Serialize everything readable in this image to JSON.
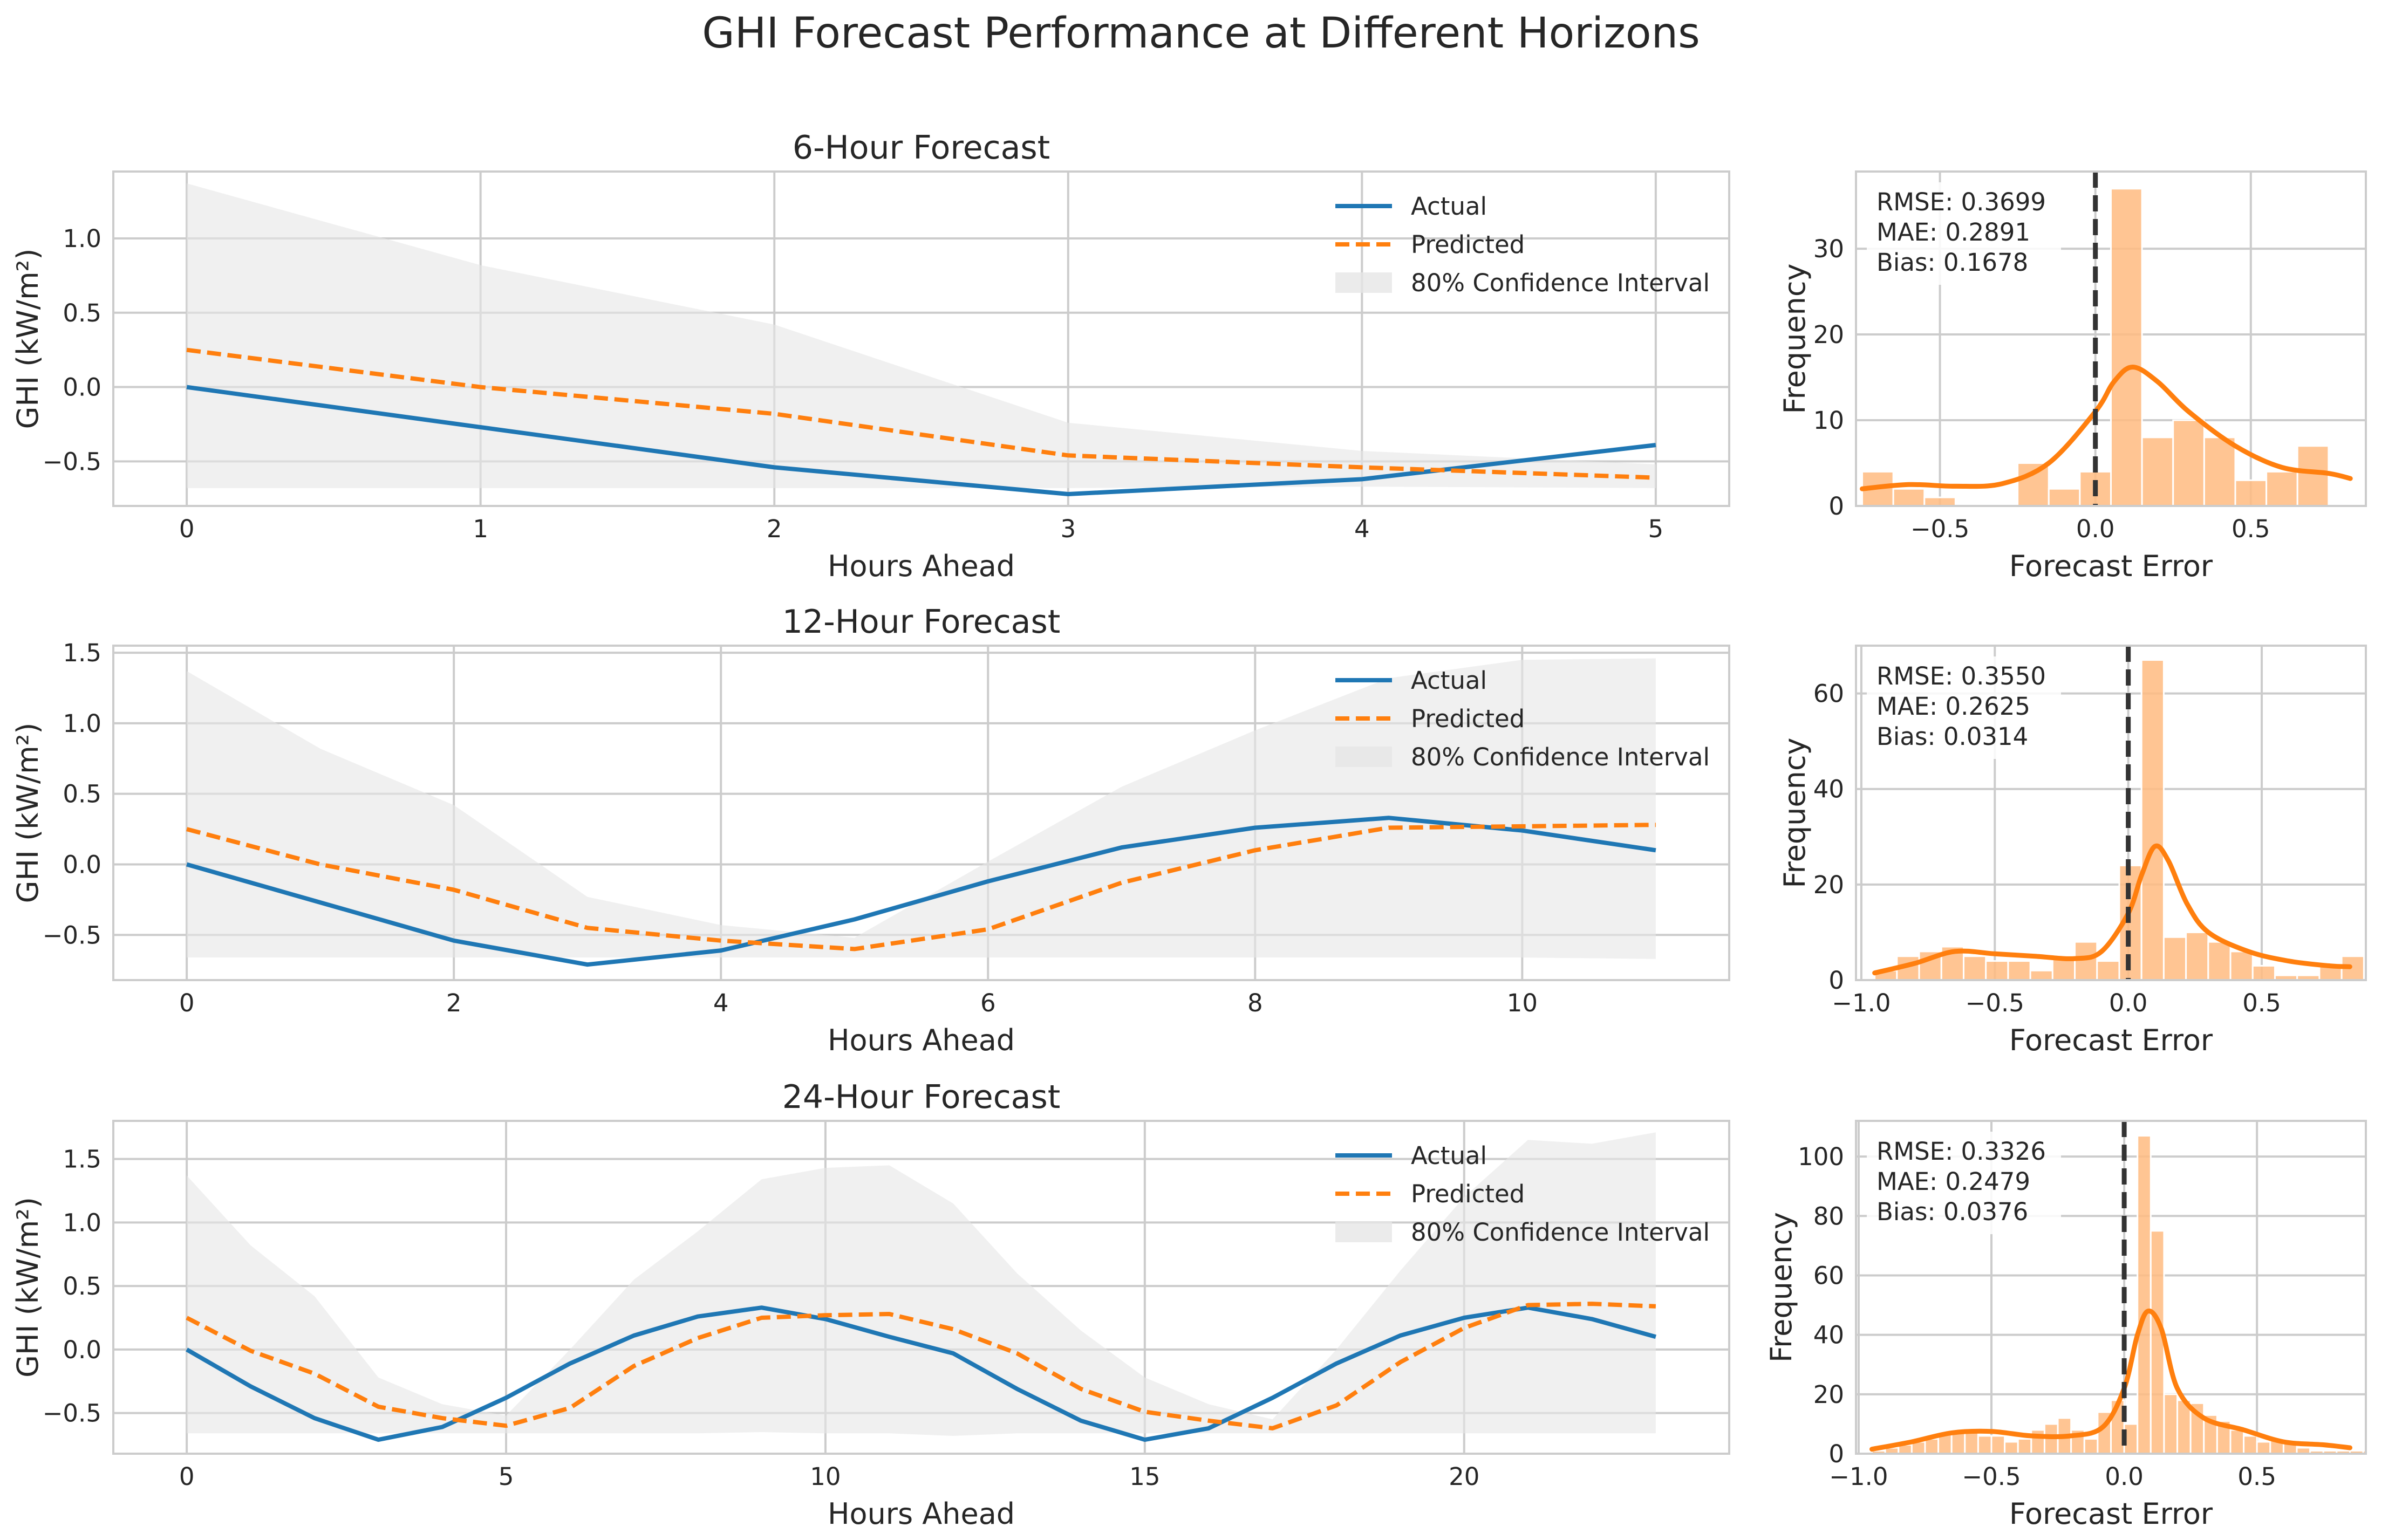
{
  "figure": {
    "title": "GHI Forecast Performance at Different Horizons",
    "colors": {
      "actual": "#1f77b4",
      "predicted": "#ff7f0e",
      "ci": "#e6e6e6",
      "hist_bar": "#ffbb80",
      "kde": "#ff7f0e",
      "vline": "#333333",
      "grid": "#cccccc",
      "frame": "#cccccc"
    }
  },
  "chart_data": [
    {
      "type": "line",
      "title": "6-Hour Forecast",
      "xlabel": "Hours Ahead",
      "ylabel": "GHI (kW/m²)",
      "xlim": [
        -0.25,
        5.25
      ],
      "ylim": [
        -0.8,
        1.45
      ],
      "xticks": [
        0,
        1,
        2,
        3,
        4,
        5
      ],
      "yticks": [
        -0.5,
        0.0,
        0.5,
        1.0
      ],
      "ytick_labels": [
        "−0.5",
        "0.0",
        "0.5",
        "1.0"
      ],
      "grid": true,
      "legend": [
        "Actual",
        "Predicted",
        "80% Confidence Interval"
      ],
      "legend_position": "upper-right",
      "x": [
        0,
        1,
        2,
        3,
        4,
        5
      ],
      "series": [
        {
          "name": "Actual",
          "style": "solid",
          "values": [
            0.0,
            -0.27,
            -0.54,
            -0.72,
            -0.62,
            -0.39
          ]
        },
        {
          "name": "Predicted",
          "style": "dashed",
          "values": [
            0.25,
            0.0,
            -0.18,
            -0.46,
            -0.54,
            -0.61
          ]
        }
      ],
      "ci": {
        "name": "80% Confidence Interval",
        "lower": [
          -0.68,
          -0.68,
          -0.68,
          -0.68,
          -0.67,
          -0.68
        ],
        "upper": [
          1.37,
          0.82,
          0.42,
          -0.24,
          -0.43,
          -0.52
        ]
      }
    },
    {
      "type": "histogram",
      "xlabel": "Forecast Error",
      "ylabel": "Frequency",
      "xlim": [
        -0.77,
        0.87
      ],
      "ylim": [
        0,
        39
      ],
      "xticks": [
        -0.5,
        0.0,
        0.5
      ],
      "xtick_labels": [
        "−0.5",
        "0.0",
        "0.5"
      ],
      "yticks": [
        0,
        10,
        20,
        30
      ],
      "grid": true,
      "bin_start": -0.75,
      "bin_width": 0.1,
      "counts": [
        4,
        2,
        1,
        0,
        0,
        5,
        2,
        4,
        37,
        8,
        10,
        8,
        3,
        4,
        7
      ],
      "kde": {
        "x": [
          -0.75,
          -0.6,
          -0.45,
          -0.3,
          -0.15,
          0.0,
          0.06,
          0.12,
          0.2,
          0.3,
          0.45,
          0.6,
          0.75,
          0.82
        ],
        "y": [
          2.0,
          2.5,
          2.3,
          2.6,
          5.0,
          11.0,
          14.5,
          16.2,
          14.5,
          11.0,
          7.0,
          4.5,
          3.8,
          3.2
        ]
      },
      "vline": 0.0,
      "stats": [
        "RMSE: 0.3699",
        "MAE: 0.2891",
        "Bias: 0.1678"
      ]
    },
    {
      "type": "line",
      "title": "12-Hour Forecast",
      "xlabel": "Hours Ahead",
      "ylabel": "GHI (kW/m²)",
      "xlim": [
        -0.55,
        11.55
      ],
      "ylim": [
        -0.82,
        1.55
      ],
      "xticks": [
        0,
        2,
        4,
        6,
        8,
        10
      ],
      "yticks": [
        -0.5,
        0.0,
        0.5,
        1.0,
        1.5
      ],
      "ytick_labels": [
        "−0.5",
        "0.0",
        "0.5",
        "1.0",
        "1.5"
      ],
      "grid": true,
      "legend": [
        "Actual",
        "Predicted",
        "80% Confidence Interval"
      ],
      "legend_position": "upper-right",
      "x": [
        0,
        1,
        2,
        3,
        4,
        5,
        6,
        7,
        8,
        9,
        10,
        11
      ],
      "series": [
        {
          "name": "Actual",
          "style": "solid",
          "values": [
            0.0,
            -0.27,
            -0.54,
            -0.71,
            -0.61,
            -0.39,
            -0.12,
            0.12,
            0.26,
            0.33,
            0.24,
            0.1
          ]
        },
        {
          "name": "Predicted",
          "style": "dashed",
          "values": [
            0.25,
            0.0,
            -0.18,
            -0.45,
            -0.54,
            -0.6,
            -0.46,
            -0.13,
            0.1,
            0.26,
            0.27,
            0.28
          ]
        }
      ],
      "ci": {
        "name": "80% Confidence Interval",
        "lower": [
          -0.66,
          -0.66,
          -0.66,
          -0.66,
          -0.66,
          -0.66,
          -0.66,
          -0.66,
          -0.66,
          -0.66,
          -0.66,
          -0.67
        ],
        "upper": [
          1.37,
          0.82,
          0.42,
          -0.23,
          -0.43,
          -0.52,
          0.02,
          0.55,
          0.95,
          1.32,
          1.45,
          1.46
        ]
      }
    },
    {
      "type": "histogram",
      "xlabel": "Forecast Error",
      "ylabel": "Frequency",
      "xlim": [
        -1.02,
        0.89
      ],
      "ylim": [
        0,
        70
      ],
      "xticks": [
        -1.0,
        -0.5,
        0.0,
        0.5
      ],
      "xtick_labels": [
        "−1.0",
        "−0.5",
        "0.0",
        "0.5"
      ],
      "yticks": [
        0,
        20,
        40,
        60
      ],
      "grid": true,
      "bin_start": -0.95,
      "bin_width": 0.0833,
      "counts": [
        2,
        5,
        6,
        7,
        5,
        4,
        4,
        2,
        5,
        8,
        4,
        24,
        67,
        9,
        10,
        8,
        6,
        3,
        1,
        1,
        3,
        5
      ],
      "kde": {
        "x": [
          -0.95,
          -0.8,
          -0.65,
          -0.5,
          -0.35,
          -0.2,
          -0.1,
          0.0,
          0.05,
          0.1,
          0.15,
          0.22,
          0.3,
          0.45,
          0.6,
          0.75,
          0.83
        ],
        "y": [
          1.5,
          3.5,
          6.0,
          5.5,
          5.0,
          4.5,
          6.0,
          14.0,
          22.0,
          28.0,
          25.0,
          16.0,
          10.0,
          6.0,
          4.0,
          3.0,
          2.8
        ]
      },
      "vline": 0.0,
      "stats": [
        "RMSE: 0.3550",
        "MAE: 0.2625",
        "Bias: 0.0314"
      ]
    },
    {
      "type": "line",
      "title": "24-Hour Forecast",
      "xlabel": "Hours Ahead",
      "ylabel": "GHI (kW/m²)",
      "xlim": [
        -1.15,
        24.15
      ],
      "ylim": [
        -0.82,
        1.8
      ],
      "xticks": [
        0,
        5,
        10,
        15,
        20
      ],
      "yticks": [
        -0.5,
        0.0,
        0.5,
        1.0,
        1.5
      ],
      "ytick_labels": [
        "−0.5",
        "0.0",
        "0.5",
        "1.0",
        "1.5"
      ],
      "grid": true,
      "legend": [
        "Actual",
        "Predicted",
        "80% Confidence Interval"
      ],
      "legend_position": "upper-right",
      "x": [
        0,
        1,
        2,
        3,
        4,
        5,
        6,
        7,
        8,
        9,
        10,
        11,
        12,
        13,
        14,
        15,
        16,
        17,
        18,
        19,
        20,
        21,
        22,
        23
      ],
      "series": [
        {
          "name": "Actual",
          "style": "solid",
          "values": [
            0.0,
            -0.29,
            -0.54,
            -0.71,
            -0.61,
            -0.38,
            -0.11,
            0.11,
            0.26,
            0.33,
            0.24,
            0.1,
            -0.03,
            -0.31,
            -0.56,
            -0.71,
            -0.62,
            -0.38,
            -0.11,
            0.11,
            0.25,
            0.33,
            0.24,
            0.1
          ]
        },
        {
          "name": "Predicted",
          "style": "dashed",
          "values": [
            0.25,
            -0.01,
            -0.19,
            -0.45,
            -0.54,
            -0.6,
            -0.46,
            -0.13,
            0.09,
            0.25,
            0.27,
            0.28,
            0.16,
            -0.03,
            -0.31,
            -0.49,
            -0.56,
            -0.62,
            -0.44,
            -0.1,
            0.17,
            0.35,
            0.36,
            0.34
          ]
        }
      ],
      "ci": {
        "name": "80% Confidence Interval",
        "lower": [
          -0.66,
          -0.66,
          -0.66,
          -0.66,
          -0.66,
          -0.66,
          -0.66,
          -0.66,
          -0.66,
          -0.65,
          -0.66,
          -0.66,
          -0.68,
          -0.66,
          -0.66,
          -0.66,
          -0.66,
          -0.66,
          -0.66,
          -0.66,
          -0.66,
          -0.66,
          -0.66,
          -0.66
        ],
        "upper": [
          1.37,
          0.82,
          0.42,
          -0.22,
          -0.43,
          -0.52,
          0.0,
          0.55,
          0.93,
          1.34,
          1.43,
          1.45,
          1.15,
          0.6,
          0.15,
          -0.22,
          -0.43,
          -0.55,
          0.0,
          0.62,
          1.2,
          1.65,
          1.62,
          1.71
        ]
      }
    },
    {
      "type": "histogram",
      "xlabel": "Forecast Error",
      "ylabel": "Frequency",
      "xlim": [
        -1.01,
        0.91
      ],
      "ylim": [
        0,
        112
      ],
      "xticks": [
        -1.0,
        -0.5,
        0.0,
        0.5
      ],
      "xtick_labels": [
        "−1.0",
        "−0.5",
        "0.0",
        "0.5"
      ],
      "yticks": [
        0,
        20,
        40,
        60,
        80,
        100
      ],
      "grid": true,
      "bin_start": -0.95,
      "bin_width": 0.05,
      "counts": [
        1,
        2,
        3,
        4,
        5,
        7,
        8,
        8,
        6,
        6,
        4,
        5,
        8,
        10,
        12,
        8,
        5,
        14,
        18,
        10,
        107,
        75,
        20,
        18,
        17,
        13,
        11,
        8,
        6,
        4,
        5,
        4,
        2,
        1,
        1,
        1,
        1,
        1
      ],
      "kde": {
        "x": [
          -0.95,
          -0.8,
          -0.65,
          -0.5,
          -0.35,
          -0.2,
          -0.08,
          0.0,
          0.05,
          0.09,
          0.14,
          0.2,
          0.3,
          0.45,
          0.6,
          0.75,
          0.85
        ],
        "y": [
          1.5,
          4.0,
          7.0,
          7.5,
          6.0,
          6.0,
          9.0,
          22.0,
          40.0,
          48.0,
          42.0,
          22.0,
          12.0,
          8.0,
          4.0,
          3.0,
          2.0
        ]
      },
      "vline": 0.0,
      "stats": [
        "RMSE: 0.3326",
        "MAE: 0.2479",
        "Bias: 0.0376"
      ]
    }
  ]
}
